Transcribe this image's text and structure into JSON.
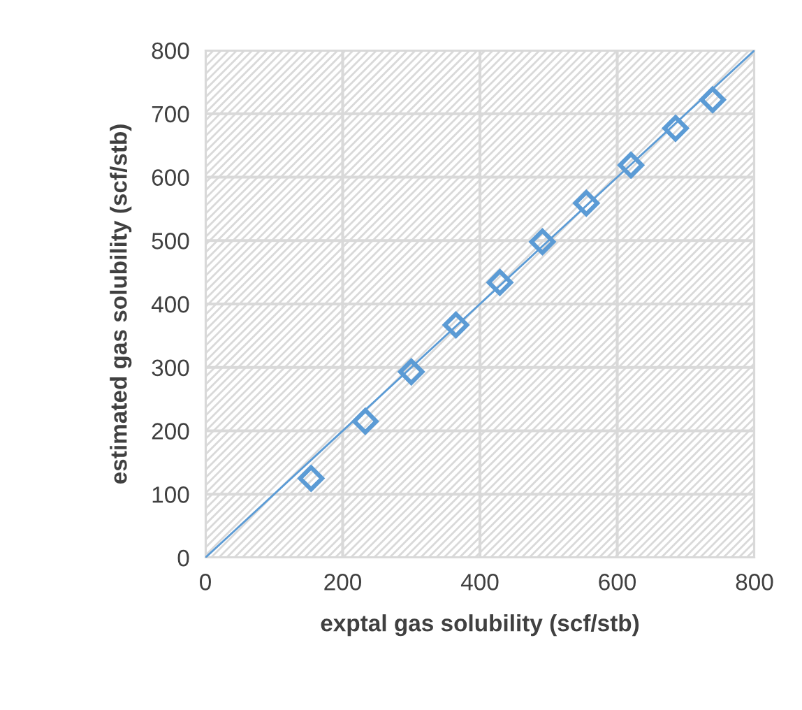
{
  "chart_data": {
    "type": "scatter",
    "xlabel": "exptal gas solubility (scf/stb)",
    "ylabel": "estimated gas solubility (scf/stb)",
    "x": [
      154,
      233,
      300,
      365,
      429,
      491,
      555,
      620,
      685,
      739
    ],
    "series": [
      {
        "color": "#5b9bd5",
        "marker": "diamond",
        "values": [
          125,
          215,
          293,
          367,
          434,
          498,
          559,
          619,
          677,
          722
        ]
      },
      {
        "type": "line",
        "color": "#5b9bd5",
        "marker": "none",
        "x": [
          0,
          800
        ],
        "values": [
          0,
          800
        ]
      }
    ],
    "xlim": [
      0,
      800
    ],
    "ylim": [
      0,
      800
    ],
    "xticks": [
      0,
      200,
      400,
      600,
      800
    ],
    "yticks": [
      0,
      100,
      200,
      300,
      400,
      500,
      600,
      700,
      800
    ],
    "grid": true,
    "legend": false
  }
}
